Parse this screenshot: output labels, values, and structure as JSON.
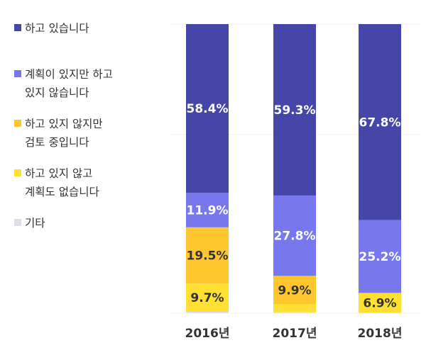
{
  "chart_data": {
    "type": "bar",
    "stacked": true,
    "categories": [
      "2016년",
      "2017년",
      "2018년"
    ],
    "ylim": [
      0,
      100
    ],
    "legend_placement": "left",
    "series": [
      {
        "name": "하고 있습니다",
        "name_lines": [
          "하고 있습니다"
        ],
        "color": "#4646a8",
        "values": [
          58.4,
          59.3,
          67.8
        ],
        "labels": [
          "58.4%",
          "59.3%",
          "67.8%"
        ]
      },
      {
        "name": "계획이 있지만 하고 있지 않습니다",
        "name_lines": [
          "계획이 있지만 하고",
          "있지 않습니다"
        ],
        "color": "#7878ee",
        "values": [
          11.9,
          27.8,
          25.2
        ],
        "labels": [
          "11.9%",
          "27.8%",
          "25.2%"
        ]
      },
      {
        "name": "하고 있지 않지만 검토 중입니다",
        "name_lines": [
          "하고 있지 않지만",
          "검토 중입니다"
        ],
        "color": "#ffc62e",
        "values": [
          19.5,
          9.9,
          0
        ],
        "labels": [
          "19.5%",
          "9.9%",
          ""
        ]
      },
      {
        "name": "하고 있지 않고 계획도 없습니다",
        "name_lines": [
          "하고 있지 않고",
          "계획도 없습니다"
        ],
        "color": "#ffe033",
        "values": [
          9.7,
          2.7,
          6.9
        ],
        "labels": [
          "9.7%",
          "",
          "6.9%"
        ]
      },
      {
        "name": "기타",
        "name_lines": [
          "기타"
        ],
        "color": "#dcdfe6",
        "values": [
          0.5,
          0.3,
          0.1
        ],
        "labels": [
          "",
          "",
          ""
        ]
      }
    ]
  }
}
